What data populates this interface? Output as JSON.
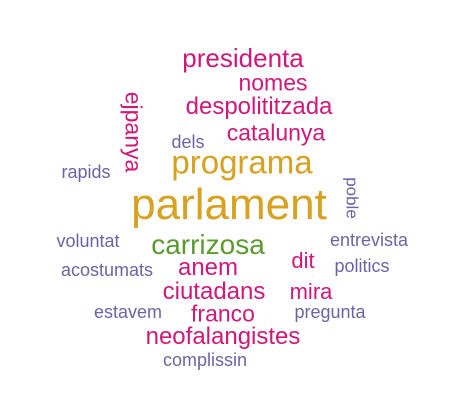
{
  "colors": {
    "gold": "#d8a11f",
    "green": "#5b9a2f",
    "magenta": "#d1187a",
    "purple": "#6d63a6"
  },
  "words": [
    {
      "text": "parlament",
      "color": "gold"
    },
    {
      "text": "programa",
      "color": "gold"
    },
    {
      "text": "carrizosa",
      "color": "green"
    },
    {
      "text": "presidenta",
      "color": "magenta"
    },
    {
      "text": "nomes",
      "color": "magenta"
    },
    {
      "text": "despolititzada",
      "color": "magenta"
    },
    {
      "text": "catalunya",
      "color": "magenta"
    },
    {
      "text": "ejpanya",
      "color": "magenta"
    },
    {
      "text": "anem",
      "color": "magenta"
    },
    {
      "text": "dit",
      "color": "magenta"
    },
    {
      "text": "ciutadans",
      "color": "magenta"
    },
    {
      "text": "mira",
      "color": "magenta"
    },
    {
      "text": "franco",
      "color": "magenta"
    },
    {
      "text": "neofalangistes",
      "color": "magenta"
    },
    {
      "text": "dels",
      "color": "purple"
    },
    {
      "text": "rapids",
      "color": "purple"
    },
    {
      "text": "poble",
      "color": "purple"
    },
    {
      "text": "voluntat",
      "color": "purple"
    },
    {
      "text": "entrevista",
      "color": "purple"
    },
    {
      "text": "acostumats",
      "color": "purple"
    },
    {
      "text": "politics",
      "color": "purple"
    },
    {
      "text": "estavem",
      "color": "purple"
    },
    {
      "text": "pregunta",
      "color": "purple"
    },
    {
      "text": "complissin",
      "color": "purple"
    }
  ]
}
